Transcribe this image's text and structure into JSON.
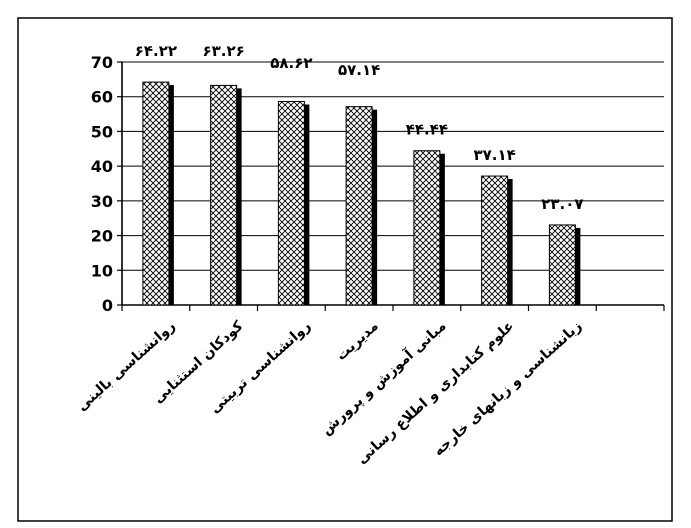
{
  "chart_data": {
    "type": "bar",
    "categories": [
      "روانشناسی بالینی",
      "کودکان استثنایی",
      "روانشناسی تربیتی",
      "مدیریت",
      "مبانی آموزش و پرورش",
      "علوم کتابداری و اطلاع رسانی",
      "زبانشناسی و زبانهای خارجه"
    ],
    "values": [
      64.22,
      63.26,
      58.62,
      57.14,
      44.44,
      37.14,
      23.07
    ],
    "data_labels": [
      "۶۴.۲۲",
      "۶۳.۲۶",
      "۵۸.۶۲",
      "۵۷.۱۴",
      "۴۴.۴۴",
      "۳۷.۱۴",
      "۲۳.۰۷"
    ],
    "yticks": [
      "0",
      "10",
      "20",
      "30",
      "40",
      "50",
      "60",
      "70"
    ],
    "ylim": [
      0,
      70
    ],
    "grid": true,
    "bar_pattern": "diagonal-crosshatch",
    "colors": {
      "bar_fill": "#ffffff",
      "bar_pattern": "#000000",
      "shadow": "#000000",
      "grid": "#000000",
      "frame": "#000000"
    }
  }
}
